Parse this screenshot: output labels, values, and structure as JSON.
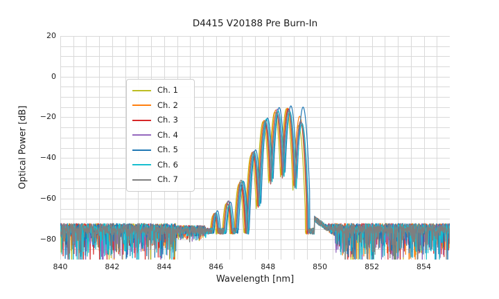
{
  "figure": {
    "background": "#ffffff",
    "text_color": "#1c1c1c"
  },
  "chart_data": {
    "type": "line",
    "title": "D4415 V20188 Pre Burn-In",
    "xlabel": "Wavelength [nm]",
    "ylabel": "Optical Power [dB]",
    "xlim": [
      840,
      855
    ],
    "ylim": [
      -90,
      20
    ],
    "x_ticks": [
      840,
      842,
      844,
      846,
      848,
      850,
      852,
      854
    ],
    "y_ticks": [
      20,
      0,
      -20,
      -40,
      -60,
      -80
    ],
    "grid": {
      "on": true,
      "x_step_nm": 0.5,
      "y_step_db": 5,
      "color": "#d9d9d9"
    },
    "legend_position": "upper left",
    "series": [
      {
        "name": "Ch. 1",
        "color": "#bcbd22",
        "dx_nm": -0.07,
        "dy_db": -1.0,
        "last_mode_db": -24.0
      },
      {
        "name": "Ch. 2",
        "color": "#ff7f0e",
        "dx_nm": -0.03,
        "dy_db": 0.0,
        "last_mode_db": -19.5
      },
      {
        "name": "Ch. 3",
        "color": "#d62728",
        "dx_nm": 0.0,
        "dy_db": 0.0,
        "last_mode_db": -22.0
      },
      {
        "name": "Ch. 4",
        "color": "#9467bd",
        "dx_nm": 0.03,
        "dy_db": 0.0,
        "last_mode_db": -22.5
      },
      {
        "name": "Ch. 5",
        "color": "#1f77b4",
        "dx_nm": 0.1,
        "dy_db": 1.0,
        "last_mode_db": -15.0
      },
      {
        "name": "Ch. 6",
        "color": "#17becf",
        "dx_nm": 0.06,
        "dy_db": 0.0,
        "last_mode_db": -23.0
      },
      {
        "name": "Ch. 7",
        "color": "#7f7f7f",
        "dx_nm": 0.01,
        "dy_db": 0.0,
        "last_mode_db": -22.0
      }
    ],
    "spectrum_model": {
      "comment": "laser mode comb rising out of noise floor, sharp cliff on red side",
      "modes_nm_db": [
        [
          845.95,
          -66.5
        ],
        [
          846.45,
          -62.0
        ],
        [
          846.95,
          -52.0
        ],
        [
          847.42,
          -38.0
        ],
        [
          847.88,
          -21.5
        ],
        [
          848.33,
          -16.8
        ],
        [
          848.78,
          -16.0
        ],
        [
          849.25,
          -16.5
        ]
      ],
      "mode_halfwidth_nm": 0.24,
      "ripple_depth_db": 38,
      "edge_cut_db": 44,
      "noise_floor_db": -75.5,
      "noise_spike_min_db": -95,
      "left_deep_noise_end_nm": 844.45,
      "signal_rise_start_nm": 845.6,
      "right_noise_start_nm": 849.78,
      "right_shoulder_db": -68.5,
      "sample_step_nm": 0.01
    }
  }
}
